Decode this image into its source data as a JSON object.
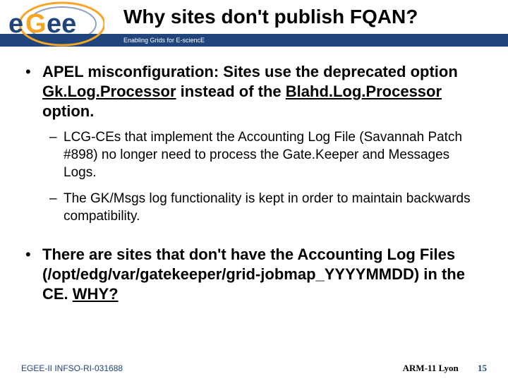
{
  "header": {
    "title": "Why sites don't publish FQAN?",
    "subtitle": "Enabling Grids for E-sciencE",
    "logo_text_top": "e",
    "logo_text_bottom": "ee",
    "logo_letter_g": "G",
    "colors": {
      "bar_bg": "#20457c",
      "logo_blue": "#20457c",
      "logo_orange": "#f5a623"
    }
  },
  "bullets": [
    {
      "level": 1,
      "segments": [
        {
          "t": "APEL misconfiguration: Sites use the deprecated option "
        },
        {
          "t": "Gk.Log.Processor",
          "u": true
        },
        {
          "t": " instead of the "
        },
        {
          "t": "Blahd.Log.Processor",
          "u": true
        },
        {
          "t": " option."
        }
      ]
    },
    {
      "level": 2,
      "segments": [
        {
          "t": "LCG-CEs that implement the Accounting Log File (Savannah Patch #898) no longer need to process the Gate.Keeper and Messages Logs."
        }
      ]
    },
    {
      "level": 2,
      "segments": [
        {
          "t": "The GK/Msgs log functionality is kept in order to maintain backwards compatibility."
        }
      ]
    },
    {
      "level": 1,
      "segments": [
        {
          "t": "There are sites that don't have the Accounting Log Files (/opt/edg/var/gatekeeper/grid-jobmap_YYYYMMDD) in the CE. "
        },
        {
          "t": "WHY?",
          "why": true
        }
      ]
    }
  ],
  "footer": {
    "left": "EGEE-II INFSO-RI-031688",
    "event": "ARM-11 Lyon",
    "page": "15"
  }
}
